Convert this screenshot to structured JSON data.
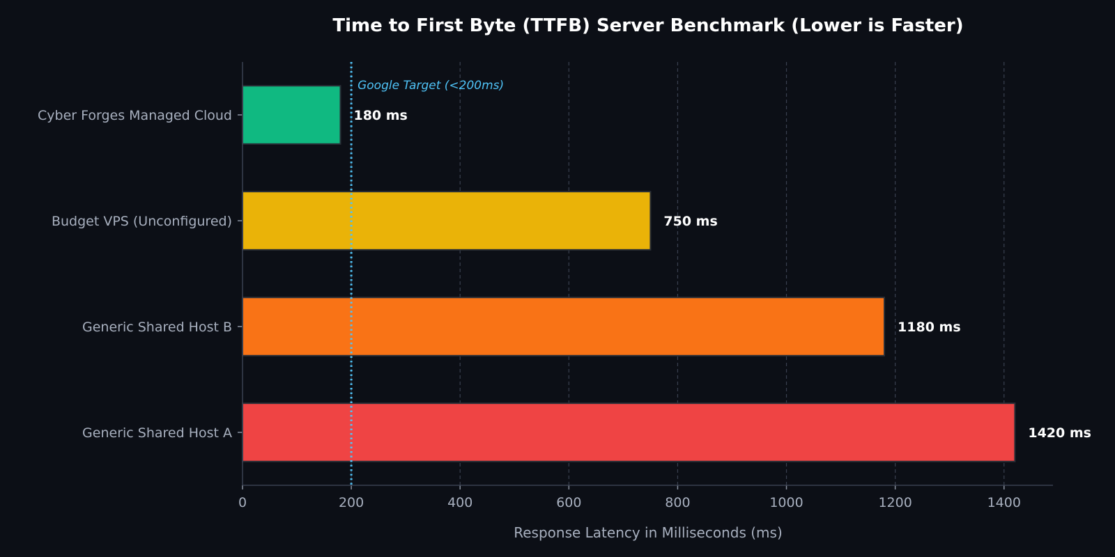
{
  "chart_data": {
    "type": "bar",
    "orientation": "horizontal",
    "title": "Time to First Byte (TTFB) Server Benchmark (Lower is Faster)",
    "xlabel": "Response Latency in Milliseconds (ms)",
    "ylabel": "",
    "xlim": [
      0,
      1490
    ],
    "xticks": [
      "0",
      "200",
      "400",
      "600",
      "800",
      "1000",
      "1200",
      "1400"
    ],
    "grid": true,
    "categories": [
      "Cyber Forges Managed Cloud",
      "Budget VPS (Unconfigured)",
      "Generic Shared Host B",
      "Generic Shared Host A"
    ],
    "values": [
      180,
      750,
      1180,
      1420
    ],
    "value_labels": [
      "180 ms",
      "750 ms",
      "1180 ms",
      "1420 ms"
    ],
    "colors": [
      "#10b981",
      "#eab308",
      "#f97316",
      "#ef4444"
    ],
    "reference_line": {
      "value": 200,
      "label": "Google Target (<200ms)",
      "color": "#4fc3f7"
    }
  }
}
